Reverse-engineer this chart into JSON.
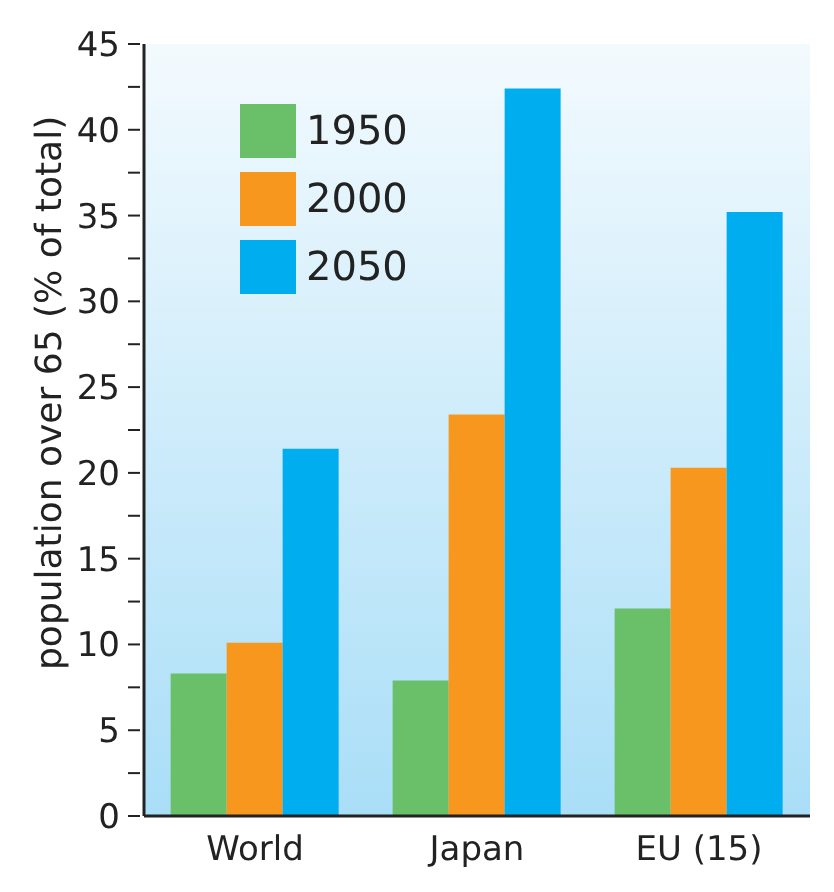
{
  "chart_data": {
    "type": "bar",
    "ylabel": "population over 65 (% of total)",
    "categories": [
      "World",
      "Japan",
      "EU (15)"
    ],
    "series": [
      {
        "name": "1950",
        "color": "#6abf69",
        "values": [
          8.3,
          7.9,
          12.1
        ]
      },
      {
        "name": "2000",
        "color": "#f7971e",
        "values": [
          10.1,
          23.4,
          20.3
        ]
      },
      {
        "name": "2050",
        "color": "#00adee",
        "values": [
          21.4,
          42.4,
          35.2
        ]
      }
    ],
    "ylim": [
      0,
      45
    ],
    "yticks": [
      0,
      {
        "value": 2.5,
        "label": null
      },
      5,
      {
        "value": 7.5,
        "label": null
      },
      10,
      {
        "value": 12.5,
        "label": null
      },
      15,
      {
        "value": 17.5,
        "label": null
      },
      20,
      {
        "value": 22.5,
        "label": null
      },
      25,
      {
        "value": 27.5,
        "label": null
      },
      30,
      {
        "value": 32.5,
        "label": null
      },
      35,
      {
        "value": 37.5,
        "label": null
      },
      40,
      {
        "value": 42.5,
        "label": null
      },
      45
    ],
    "legend": "top left"
  }
}
